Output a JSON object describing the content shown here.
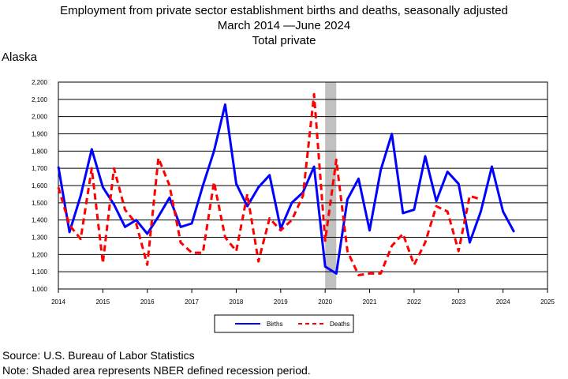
{
  "chart_data": {
    "type": "line",
    "title": "Employment from private sector establishment births and deaths, seasonally adjusted",
    "subtitle": "March 2014 —June 2024",
    "subtitle2": "Total private",
    "region": "Alaska",
    "ylim": [
      1000,
      2200
    ],
    "xlim": [
      2014,
      2025
    ],
    "yticks": [
      "1,000",
      "1,100",
      "1,200",
      "1,300",
      "1,400",
      "1,500",
      "1,600",
      "1,700",
      "1,800",
      "1,900",
      "2,000",
      "2,100",
      "2,200"
    ],
    "xticks": [
      "2014",
      "2015",
      "2016",
      "2017",
      "2018",
      "2019",
      "2020",
      "2021",
      "2022",
      "2023",
      "2024",
      "2025"
    ],
    "grid": "horizontal",
    "legend_position": "bottom-center",
    "recession": {
      "start": 2020.0,
      "end": 2020.25,
      "color": "#c0c0c0"
    },
    "x": [
      2014.0,
      2014.25,
      2014.5,
      2014.75,
      2015.0,
      2015.25,
      2015.5,
      2015.75,
      2016.0,
      2016.25,
      2016.5,
      2016.75,
      2017.0,
      2017.25,
      2017.5,
      2017.75,
      2018.0,
      2018.25,
      2018.5,
      2018.75,
      2019.0,
      2019.25,
      2019.5,
      2019.75,
      2020.0,
      2020.25,
      2020.5,
      2020.75,
      2021.0,
      2021.25,
      2021.5,
      2021.75,
      2022.0,
      2022.25,
      2022.5,
      2022.75,
      2023.0,
      2023.25,
      2023.5,
      2023.75,
      2024.0,
      2024.25
    ],
    "series": [
      {
        "name": "Births",
        "color": "#0000ff",
        "style": "solid",
        "values": [
          1710,
          1330,
          1540,
          1810,
          1590,
          1490,
          1360,
          1400,
          1320,
          1420,
          1530,
          1360,
          1380,
          1600,
          1800,
          2070,
          1610,
          1480,
          1590,
          1660,
          1350,
          1500,
          1560,
          1710,
          1130,
          1090,
          1520,
          1640,
          1340,
          1690,
          1900,
          1440,
          1460,
          1770,
          1510,
          1680,
          1610,
          1270,
          1450,
          1710,
          1450,
          1330
        ]
      },
      {
        "name": "Deaths",
        "color": "#ff0000",
        "style": "dashed",
        "values": [
          1590,
          1370,
          1290,
          1700,
          1150,
          1700,
          1460,
          1380,
          1140,
          1760,
          1600,
          1270,
          1210,
          1210,
          1620,
          1300,
          1220,
          1550,
          1160,
          1410,
          1340,
          1400,
          1540,
          2130,
          1280,
          1750,
          1220,
          1080,
          1090,
          1090,
          1250,
          1320,
          1140,
          1270,
          1480,
          1450,
          1220,
          1540,
          1520,
          null,
          null,
          null
        ]
      }
    ]
  },
  "footer": {
    "source": "Source: U.S. Bureau of Labor Statistics",
    "note": "Note: Shaded area represents NBER defined recession period."
  }
}
